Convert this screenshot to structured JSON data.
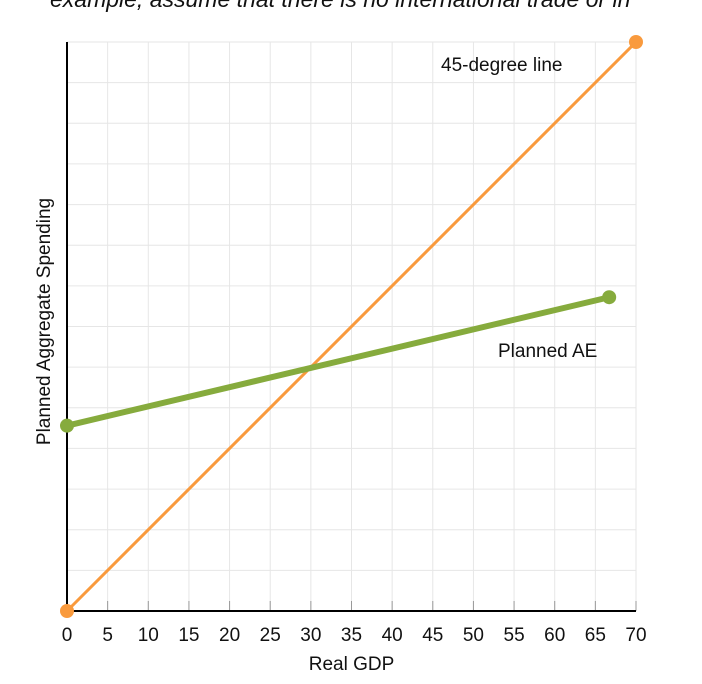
{
  "caption": "example, assume that there is no international trade or in",
  "chart_data": {
    "type": "line",
    "title": "",
    "xlabel": "Real GDP",
    "ylabel": "Planned Aggregate Spending",
    "xlim": [
      0,
      70
    ],
    "ylim": [
      0,
      70
    ],
    "x_ticks": [
      "0",
      "5",
      "10",
      "15",
      "20",
      "25",
      "30",
      "35",
      "40",
      "45",
      "50",
      "55",
      "60",
      "65",
      "70"
    ],
    "y_ticks_labeled": false,
    "grid": true,
    "grid_step": 5,
    "series": [
      {
        "name": "45-degree line",
        "color": "#f99a3d",
        "points": [
          [
            0,
            0
          ],
          [
            70,
            70
          ]
        ]
      },
      {
        "name": "Planned AE",
        "color": "#86ab3d",
        "points": [
          [
            0,
            22.8
          ],
          [
            66.7,
            38.6
          ]
        ]
      }
    ]
  }
}
